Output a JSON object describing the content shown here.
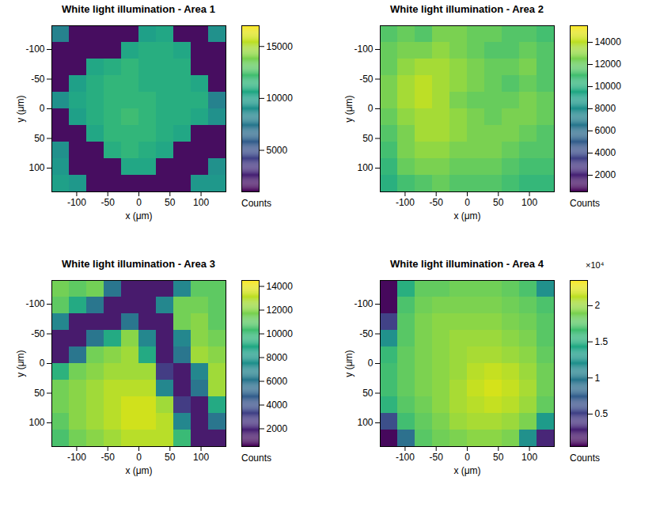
{
  "chart_data": [
    {
      "type": "heatmap",
      "title": "White light illumination - Area 1",
      "x_label": "x (μm)",
      "y_label": "y (μm)",
      "xlim": [
        -140,
        140
      ],
      "ylim": [
        -140,
        140
      ],
      "xticks": [
        -100,
        -50,
        0,
        50,
        100
      ],
      "yticks": [
        -100,
        -50,
        0,
        50,
        100
      ],
      "x_edges": [
        -140,
        -112,
        -84,
        -56,
        -28,
        0,
        28,
        56,
        84,
        112,
        140
      ],
      "y_edges": [
        -140,
        -112,
        -84,
        -56,
        -28,
        0,
        28,
        56,
        84,
        112,
        140
      ],
      "cells": [
        [
          8000,
          1500,
          1500,
          1500,
          1500,
          10000,
          10500,
          1500,
          1500,
          9000
        ],
        [
          1500,
          1500,
          1500,
          1500,
          10500,
          11000,
          11000,
          10500,
          1500,
          1500
        ],
        [
          1500,
          1500,
          10500,
          11000,
          11500,
          11000,
          11000,
          11000,
          1500,
          1500
        ],
        [
          1500,
          10000,
          11000,
          11500,
          11500,
          11000,
          11000,
          11000,
          10500,
          1500
        ],
        [
          9000,
          10500,
          11000,
          11500,
          11500,
          11500,
          11000,
          11000,
          11000,
          8000
        ],
        [
          1500,
          10000,
          11000,
          11500,
          12000,
          11500,
          11000,
          11000,
          10500,
          9000
        ],
        [
          1500,
          1500,
          10500,
          11500,
          11500,
          11500,
          11000,
          10500,
          1500,
          1500
        ],
        [
          9000,
          1500,
          1500,
          11000,
          11500,
          11000,
          10500,
          1500,
          1500,
          1500
        ],
        [
          9500,
          1500,
          1500,
          1500,
          10500,
          10500,
          1500,
          1500,
          1500,
          9000
        ],
        [
          10000,
          9500,
          1500,
          1500,
          1500,
          1500,
          1500,
          1500,
          9500,
          9500
        ]
      ],
      "colorbar": {
        "range": [
          1000,
          17000
        ],
        "ticks": [
          5000,
          10000,
          15000
        ],
        "label": "Counts"
      }
    },
    {
      "type": "heatmap",
      "title": "White light illumination - Area 2",
      "x_label": "x (μm)",
      "y_label": "y (μm)",
      "xlim": [
        -140,
        140
      ],
      "ylim": [
        -140,
        140
      ],
      "xticks": [
        -100,
        -50,
        0,
        50,
        100
      ],
      "yticks": [
        -100,
        -50,
        0,
        50,
        100
      ],
      "x_edges": [
        -140,
        -112,
        -84,
        -56,
        -28,
        0,
        28,
        56,
        84,
        112,
        140
      ],
      "y_edges": [
        -140,
        -112,
        -84,
        -56,
        -28,
        0,
        28,
        56,
        84,
        112,
        140
      ],
      "cells": [
        [
          11500,
          12000,
          11500,
          12500,
          12500,
          12000,
          12000,
          11500,
          11500,
          11000
        ],
        [
          12000,
          12500,
          12500,
          13000,
          12500,
          12000,
          11500,
          11500,
          12000,
          11500
        ],
        [
          12000,
          13000,
          13500,
          13500,
          13000,
          12500,
          12000,
          12000,
          12500,
          11500
        ],
        [
          12500,
          13500,
          14000,
          13500,
          13000,
          12500,
          12000,
          11500,
          12000,
          11500
        ],
        [
          12500,
          13500,
          14000,
          13500,
          12500,
          12000,
          12000,
          12000,
          12500,
          12000
        ],
        [
          12000,
          13000,
          13500,
          13500,
          13000,
          12500,
          12000,
          12500,
          12500,
          12000
        ],
        [
          11500,
          12500,
          13500,
          13500,
          13000,
          12500,
          12500,
          12500,
          12000,
          11500
        ],
        [
          11000,
          12500,
          13000,
          13000,
          12500,
          12500,
          12500,
          12000,
          11500,
          11500
        ],
        [
          10500,
          12000,
          12500,
          12500,
          12000,
          12000,
          12000,
          11500,
          11000,
          11000
        ],
        [
          10000,
          11000,
          11500,
          12000,
          11500,
          11500,
          11500,
          11000,
          10500,
          10500
        ]
      ],
      "colorbar": {
        "range": [
          500,
          15500
        ],
        "ticks": [
          2000,
          4000,
          6000,
          8000,
          10000,
          12000,
          14000
        ],
        "label": "Counts"
      }
    },
    {
      "type": "heatmap",
      "title": "White light illumination - Area 3",
      "x_label": "x (μm)",
      "y_label": "y (μm)",
      "xlim": [
        -140,
        140
      ],
      "ylim": [
        -140,
        140
      ],
      "xticks": [
        -100,
        -50,
        0,
        50,
        100
      ],
      "yticks": [
        -100,
        -50,
        0,
        50,
        100
      ],
      "x_edges": [
        -140,
        -112,
        -84,
        -56,
        -28,
        0,
        28,
        56,
        84,
        112,
        140
      ],
      "y_edges": [
        -140,
        -112,
        -84,
        -56,
        -28,
        0,
        28,
        56,
        84,
        112,
        140
      ],
      "cells": [
        [
          11500,
          11000,
          11500,
          6000,
          1500,
          1500,
          1500,
          7000,
          11000,
          11000
        ],
        [
          11000,
          9000,
          6000,
          1500,
          1500,
          1500,
          7000,
          11500,
          11500,
          11000
        ],
        [
          7000,
          1500,
          1500,
          1500,
          6000,
          1500,
          1500,
          11500,
          12000,
          11000
        ],
        [
          1500,
          1500,
          6000,
          9000,
          12000,
          7000,
          1500,
          7000,
          12000,
          11500
        ],
        [
          1500,
          6000,
          11500,
          12000,
          12500,
          9000,
          1500,
          6000,
          12500,
          12000
        ],
        [
          9500,
          11500,
          12000,
          12500,
          12500,
          12500,
          3000,
          1500,
          7000,
          12500
        ],
        [
          11500,
          12000,
          12500,
          13000,
          13000,
          13000,
          7000,
          1500,
          6000,
          12500
        ],
        [
          11500,
          12000,
          12500,
          13000,
          13500,
          13500,
          12500,
          3000,
          1500,
          9000
        ],
        [
          11000,
          12000,
          12500,
          13000,
          13500,
          13500,
          13000,
          7000,
          1500,
          6000
        ],
        [
          10500,
          11500,
          12000,
          12500,
          13000,
          13000,
          13000,
          10000,
          1500,
          1500
        ]
      ],
      "colorbar": {
        "range": [
          500,
          14500
        ],
        "ticks": [
          2000,
          4000,
          6000,
          8000,
          10000,
          12000,
          14000
        ],
        "label": "Counts"
      }
    },
    {
      "type": "heatmap",
      "title": "White light illumination - Area 4",
      "x_label": "x (μm)",
      "y_label": "y (μm)",
      "xlim": [
        -140,
        140
      ],
      "ylim": [
        -140,
        140
      ],
      "xticks": [
        -100,
        -50,
        0,
        50,
        100
      ],
      "yticks": [
        -100,
        -50,
        0,
        50,
        100
      ],
      "x_edges": [
        -140,
        -112,
        -84,
        -56,
        -28,
        0,
        28,
        56,
        84,
        112,
        140
      ],
      "y_edges": [
        -140,
        -112,
        -84,
        -56,
        -28,
        0,
        28,
        56,
        84,
        112,
        140
      ],
      "cells": [
        [
          1000,
          15000,
          18000,
          18000,
          18500,
          18500,
          18500,
          18000,
          17000,
          12000
        ],
        [
          1000,
          17000,
          18500,
          19000,
          19000,
          19000,
          19000,
          18500,
          18000,
          17000
        ],
        [
          5000,
          17500,
          19000,
          19500,
          19500,
          19500,
          19500,
          19000,
          18500,
          17500
        ],
        [
          12000,
          17500,
          19000,
          19500,
          20000,
          20000,
          20000,
          19500,
          19000,
          17500
        ],
        [
          16000,
          18000,
          19000,
          19500,
          20000,
          20500,
          20500,
          20000,
          19500,
          18000
        ],
        [
          16500,
          18000,
          19000,
          19500,
          20000,
          21000,
          21500,
          21000,
          20000,
          18500
        ],
        [
          16500,
          18000,
          19000,
          19500,
          20500,
          21500,
          22000,
          21500,
          20500,
          18500
        ],
        [
          15500,
          17500,
          18500,
          19500,
          20500,
          21000,
          21500,
          21000,
          20000,
          18000
        ],
        [
          6000,
          16500,
          18000,
          19000,
          20000,
          20500,
          20500,
          20000,
          19000,
          13000
        ],
        [
          1000,
          9000,
          17500,
          18500,
          19000,
          19500,
          19500,
          19000,
          12000,
          3000
        ]
      ],
      "colorbar": {
        "range": [
          500,
          23500
        ],
        "ticks": [
          {
            "value": 5000,
            "label": "0.5"
          },
          {
            "value": 10000,
            "label": "1"
          },
          {
            "value": 15000,
            "label": "1.5"
          },
          {
            "value": 20000,
            "label": "2"
          }
        ],
        "label": "Counts",
        "multiplier": "×10⁴"
      }
    }
  ]
}
